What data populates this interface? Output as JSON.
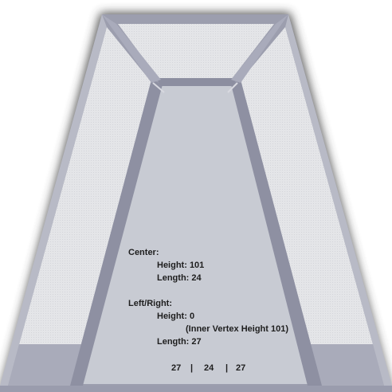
{
  "center": {
    "heading": "Center:",
    "height_label": "Height: 101",
    "length_label": "Length: 24"
  },
  "left_right": {
    "heading": "Left/Right:",
    "height_label": "Height: 0",
    "inner_vertex_label": "(Inner Vertex Height 101)",
    "length_label": "Length: 27"
  },
  "summary": {
    "left": "27",
    "sep1": "|",
    "center": "24",
    "sep2": "|",
    "right": "27"
  },
  "colors": {
    "floor": "#c8cbd3",
    "wall_panel": "#e6e7ea",
    "frame": "#a0a2b2",
    "frame_dark": "#7e8092",
    "frame_light": "#c2c4d0",
    "wall_base": "#a7a9b8",
    "shadow": "#4a4a4a"
  }
}
